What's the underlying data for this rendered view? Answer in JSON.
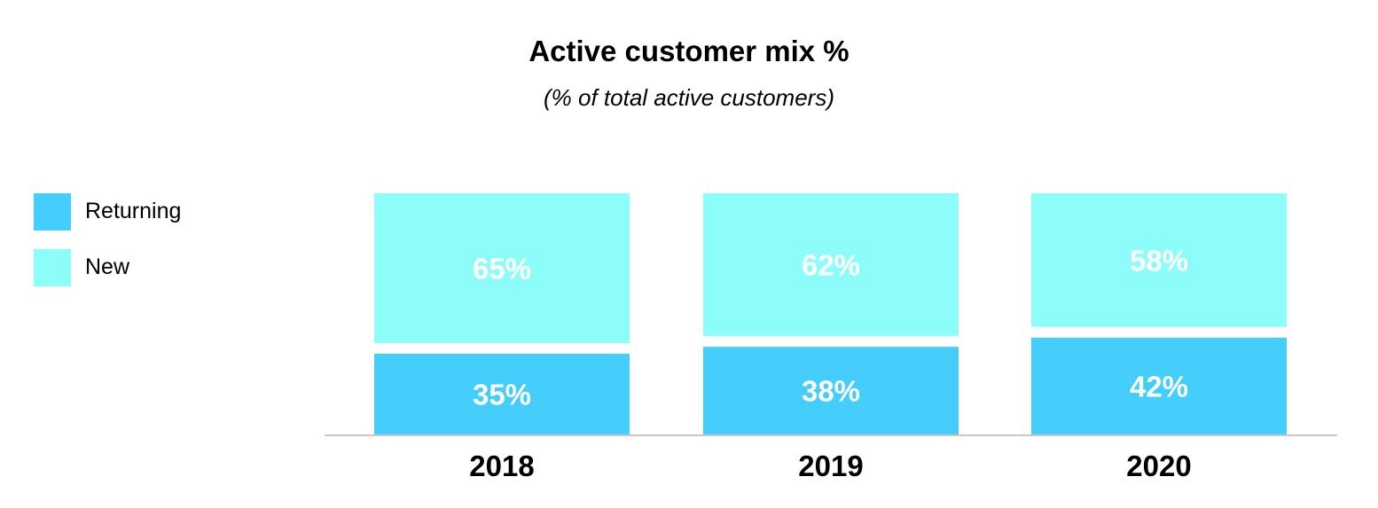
{
  "chart_data": {
    "type": "bar",
    "stacked": true,
    "title": "Active customer mix %",
    "subtitle": "(% of total active customers)",
    "categories": [
      "2018",
      "2019",
      "2020"
    ],
    "series": [
      {
        "name": "Returning",
        "values": [
          35,
          38,
          42
        ],
        "labels": [
          "35%",
          "38%",
          "42%"
        ],
        "color": "#45CDFC"
      },
      {
        "name": "New",
        "values": [
          65,
          62,
          58
        ],
        "labels": [
          "65%",
          "62%",
          "58%"
        ],
        "color": "#8DFDFA"
      }
    ],
    "ylim": [
      0,
      100
    ],
    "xlabel": "",
    "ylabel": "",
    "grid": false,
    "legend_position": "left",
    "axis_color": "#C8C8C8",
    "label_color": "#FFFFFF"
  }
}
